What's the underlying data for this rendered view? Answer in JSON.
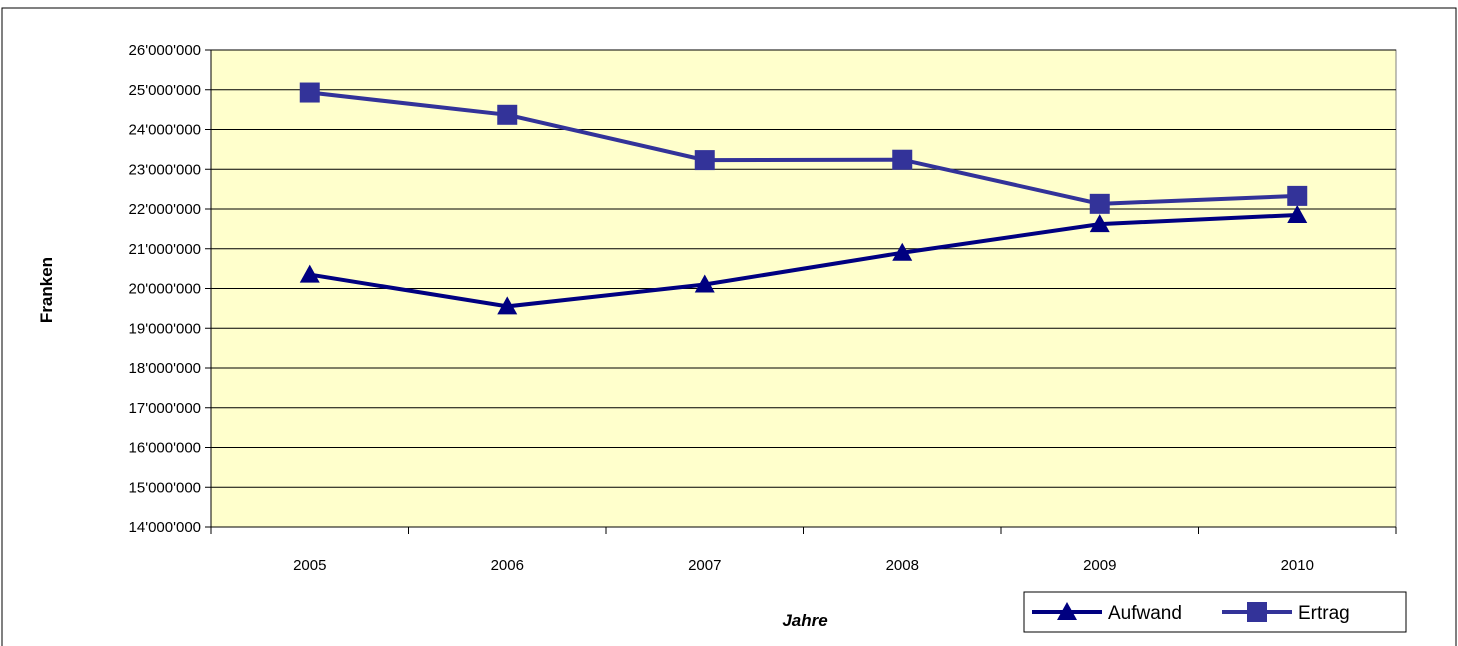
{
  "chart_data": {
    "type": "line",
    "title": "",
    "xlabel": "Jahre",
    "ylabel": "Franken",
    "categories": [
      "2005",
      "2006",
      "2007",
      "2008",
      "2009",
      "2010"
    ],
    "ylim": [
      14000000,
      26000000
    ],
    "y_ticks": [
      "14'000'000",
      "15'000'000",
      "16'000'000",
      "17'000'000",
      "18'000'000",
      "19'000'000",
      "20'000'000",
      "21'000'000",
      "22'000'000",
      "23'000'000",
      "24'000'000",
      "25'000'000",
      "26'000'000"
    ],
    "grid": true,
    "legend_position": "bottom-right",
    "plot_background": "#FFFFCC",
    "series": [
      {
        "name": "Aufwand",
        "marker": "triangle",
        "color": "#000080",
        "values": [
          20350000,
          19550000,
          20100000,
          20900000,
          21620000,
          21850000
        ]
      },
      {
        "name": "Ertrag",
        "marker": "square",
        "color": "#333399",
        "values": [
          24930000,
          24370000,
          23230000,
          23240000,
          22130000,
          22330000
        ]
      }
    ]
  }
}
